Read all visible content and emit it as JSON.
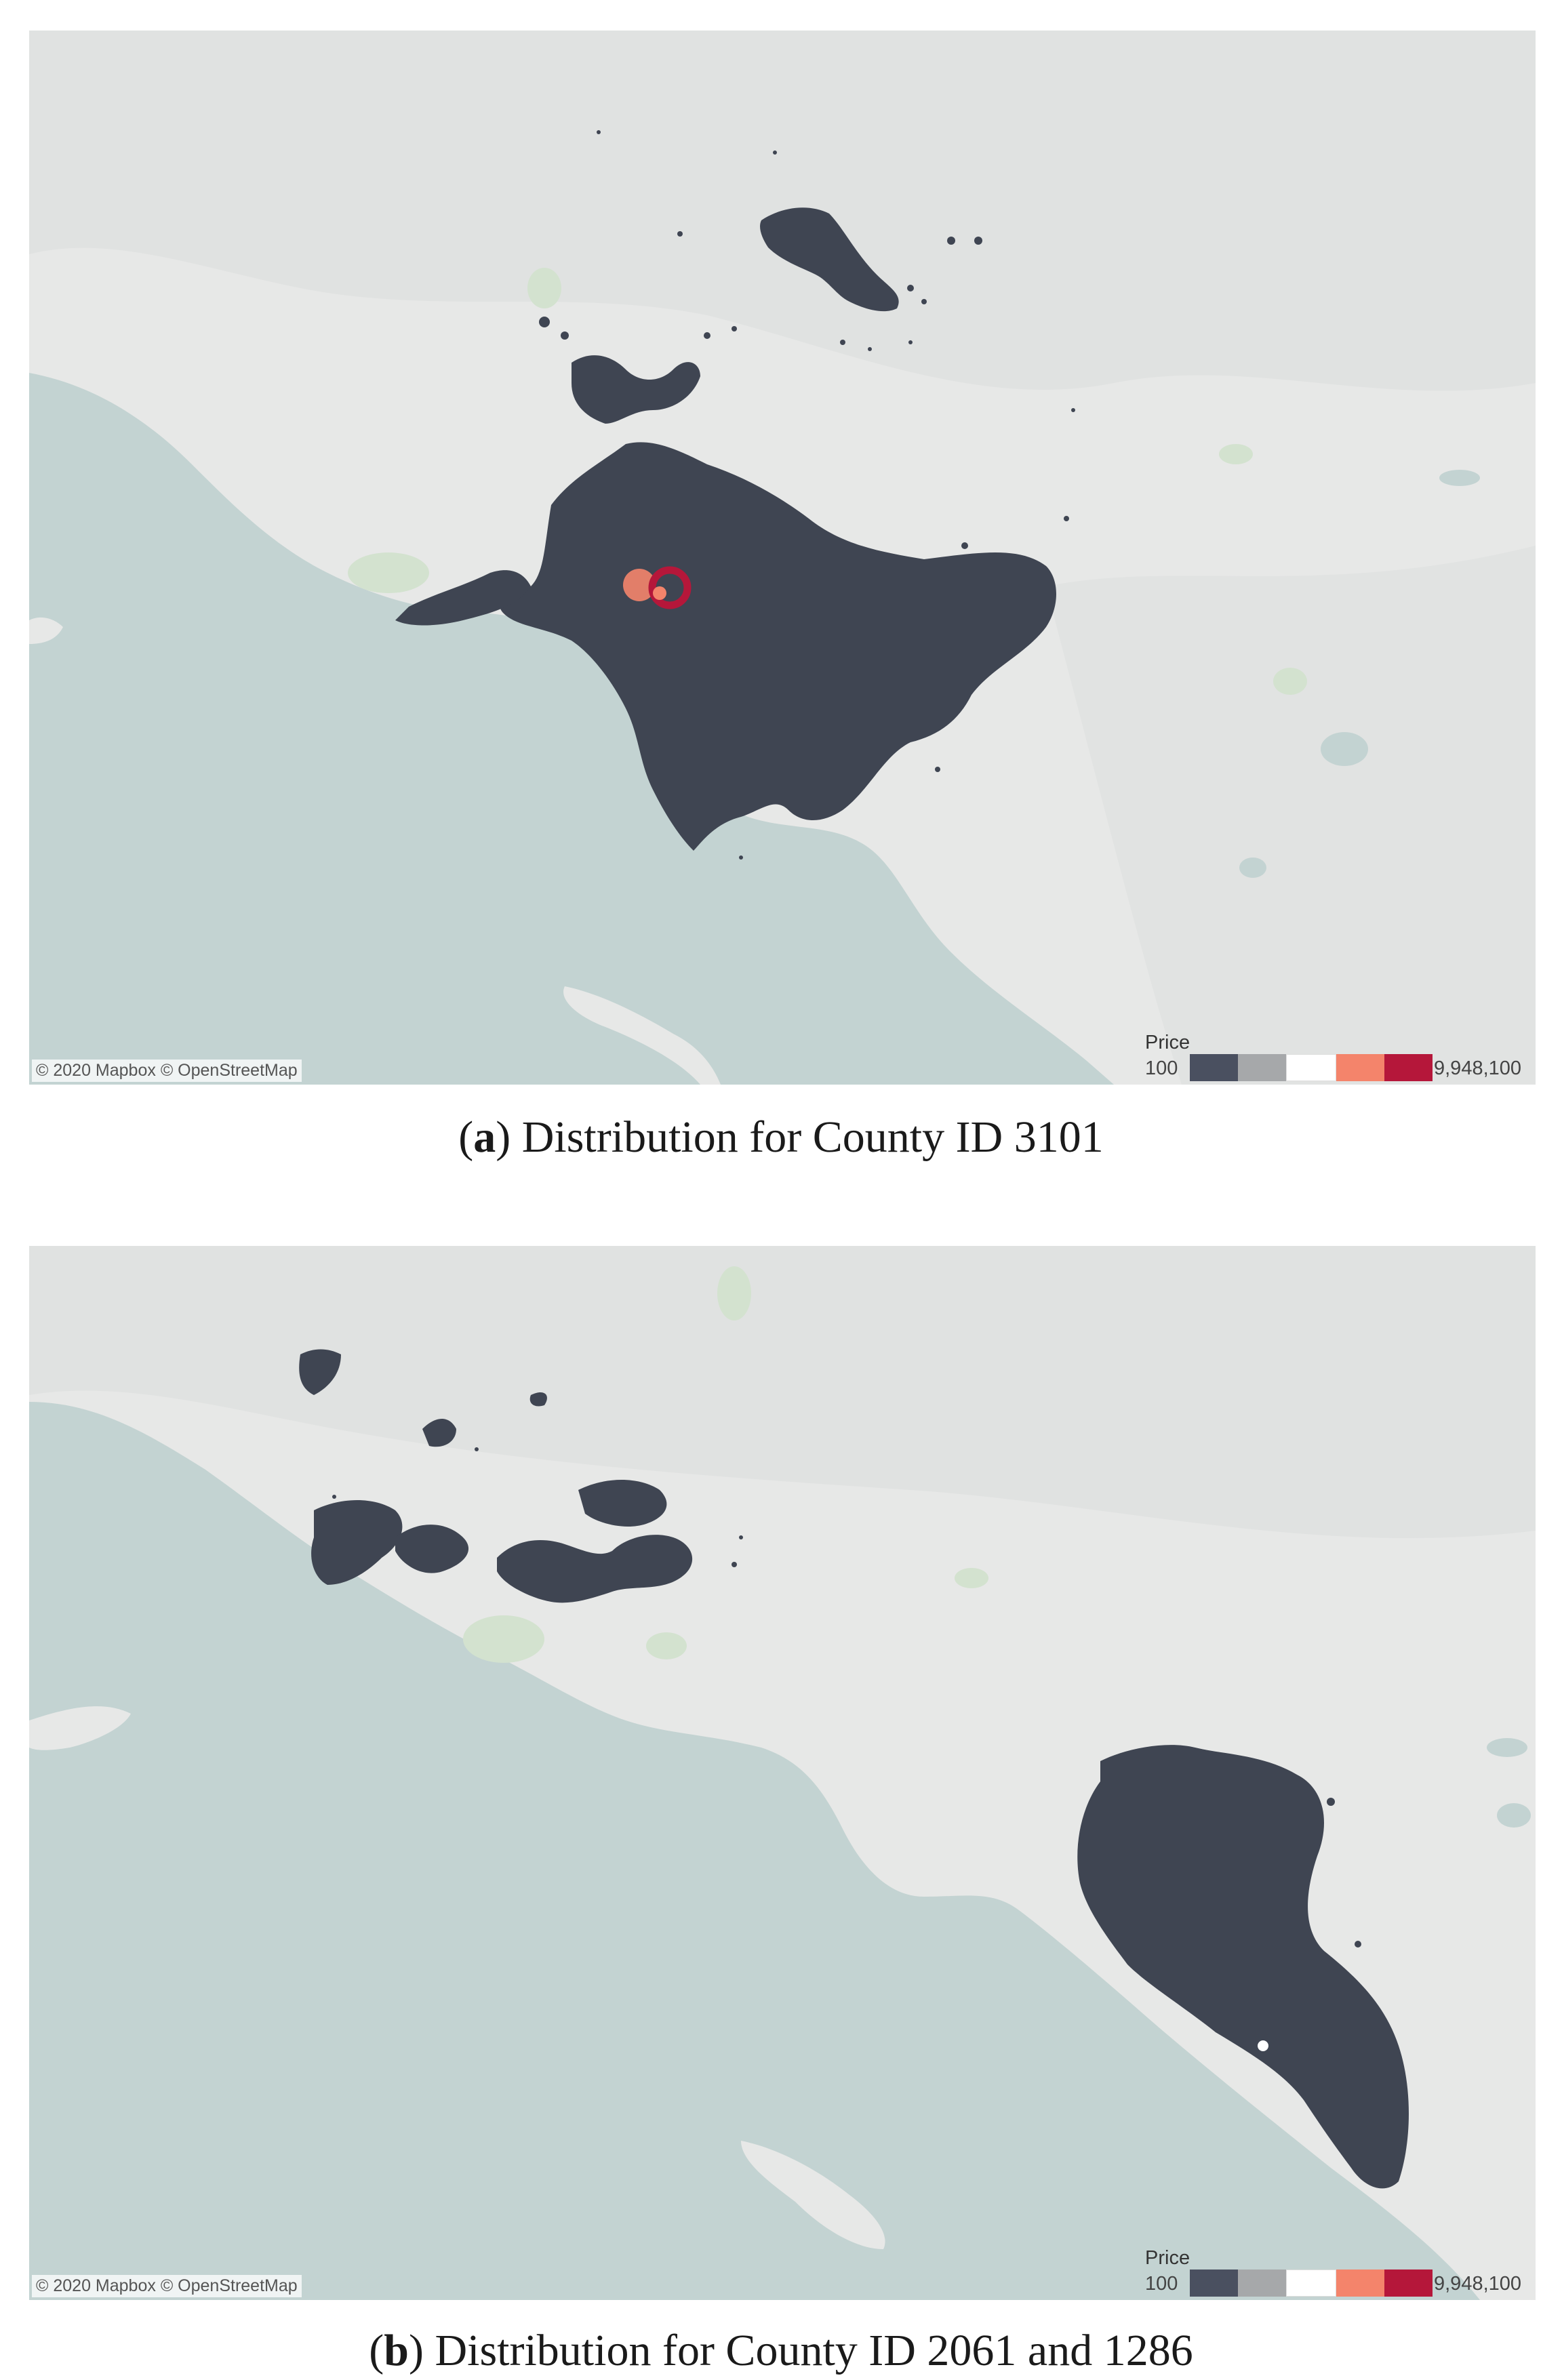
{
  "colors": {
    "land": "#e7e8e7",
    "land_shade": "#dcdedd",
    "water": "#c3d3d2",
    "park": "#d3e2cf",
    "points": "#3f4552",
    "price_light": "#f4846b",
    "price_high": "#b5173a"
  },
  "maps": [
    {
      "attribution": "© 2020 Mapbox © OpenStreetMap",
      "legend": {
        "title": "Price",
        "min": "100",
        "max": "9,948,100",
        "colors": [
          "#4a5060",
          "#a6a8aa",
          "#ffffff",
          "#f4846b",
          "#b5173a"
        ]
      },
      "caption": {
        "label_open": "(",
        "label": "a",
        "label_close": ")",
        "text": " Distribution for County ID 3101"
      }
    },
    {
      "attribution": "© 2020 Mapbox © OpenStreetMap",
      "legend": {
        "title": "Price",
        "min": "100",
        "max": "9,948,100",
        "colors": [
          "#4a5060",
          "#a6a8aa",
          "#ffffff",
          "#f4846b",
          "#b5173a"
        ]
      },
      "caption": {
        "label_open": "(",
        "label": "b",
        "label_close": ")",
        "text": " Distribution for County ID 2061 and 1286"
      }
    }
  ]
}
